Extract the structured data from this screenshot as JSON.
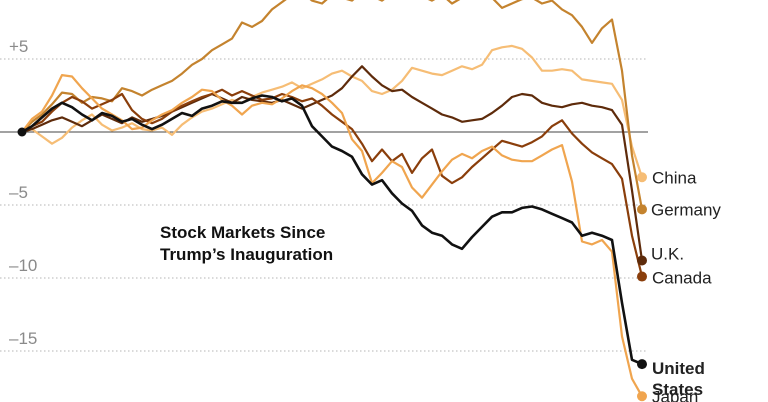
{
  "chart_data": {
    "type": "line",
    "title_lines": [
      "Stock Markets Since",
      "Trump’s Inauguration"
    ],
    "y_ticks": [
      {
        "value": 5,
        "label": "+5"
      },
      {
        "value": -5,
        "label": "–5"
      },
      {
        "value": -10,
        "label": "–10"
      },
      {
        "value": -15,
        "label": "–15"
      }
    ],
    "ylim": [
      -18.6,
      9.2
    ],
    "x_count": 63,
    "baseline": 0,
    "series": [
      {
        "name": "China",
        "color": "#f6bd75",
        "width": 2.2,
        "label_lines": [
          "China"
        ],
        "label_bold": false,
        "values": [
          0,
          0.2,
          -0.3,
          -0.8,
          -0.4,
          0.3,
          0.8,
          1.2,
          0.5,
          0.1,
          0.3,
          0.6,
          0.2,
          0.1,
          0.3,
          -0.2,
          0.5,
          1.0,
          1.4,
          1.6,
          1.9,
          2.2,
          2.0,
          2.4,
          2.7,
          2.9,
          3.1,
          3.4,
          3.0,
          3.3,
          3.6,
          4.0,
          4.2,
          3.8,
          3.5,
          2.8,
          2.6,
          2.9,
          3.5,
          4.4,
          4.2,
          4.0,
          3.9,
          4.2,
          4.5,
          4.3,
          4.6,
          5.6,
          5.8,
          5.9,
          5.7,
          5.1,
          4.2,
          4.2,
          4.3,
          4.2,
          3.6,
          3.5,
          3.4,
          3.3,
          2.2,
          -1.0,
          -3.1
        ]
      },
      {
        "name": "Germany",
        "color": "#c4832e",
        "width": 2.2,
        "label_lines": [
          "Germany"
        ],
        "label_bold": false,
        "values": [
          0,
          0.7,
          1.2,
          1.9,
          2.7,
          2.6,
          2.0,
          2.4,
          2.3,
          2.1,
          3.0,
          2.8,
          2.5,
          2.9,
          3.2,
          3.5,
          4.0,
          4.6,
          5.0,
          5.6,
          6.0,
          6.4,
          7.5,
          7.2,
          7.6,
          8.4,
          8.9,
          9.4,
          9.6,
          9.0,
          8.8,
          9.4,
          9.2,
          9.0,
          9.6,
          9.3,
          9.0,
          9.5,
          9.6,
          9.2,
          9.3,
          9.0,
          9.4,
          8.8,
          9.2,
          9.8,
          9.6,
          9.2,
          8.5,
          8.8,
          9.1,
          9.2,
          8.8,
          9.0,
          8.4,
          8.0,
          7.2,
          6.1,
          7.1,
          7.7,
          4.2,
          -1.6,
          -5.3
        ]
      },
      {
        "name": "U.K.",
        "color": "#5e2b0b",
        "width": 2.2,
        "label_lines": [
          "U.K."
        ],
        "label_bold": false,
        "values": [
          0,
          0.2,
          0.5,
          0.8,
          1.0,
          0.7,
          0.4,
          0.8,
          1.2,
          0.9,
          0.6,
          1.0,
          0.7,
          0.9,
          1.1,
          1.4,
          1.7,
          2.0,
          2.3,
          2.6,
          2.3,
          2.0,
          2.4,
          2.2,
          2.1,
          2.0,
          2.2,
          1.9,
          1.6,
          1.9,
          2.2,
          2.5,
          3.0,
          3.8,
          4.5,
          3.8,
          3.2,
          2.8,
          2.9,
          2.4,
          2.0,
          1.6,
          1.2,
          1.0,
          0.7,
          0.8,
          0.9,
          1.3,
          1.8,
          2.4,
          2.6,
          2.5,
          2.0,
          1.8,
          1.7,
          1.9,
          2.0,
          1.8,
          1.7,
          1.5,
          0.5,
          -4.0,
          -8.8
        ]
      },
      {
        "name": "Canada",
        "color": "#8a3e0b",
        "width": 2.2,
        "label_lines": [
          "Canada"
        ],
        "label_bold": false,
        "values": [
          0,
          0.4,
          0.7,
          1.4,
          2.0,
          2.4,
          2.1,
          1.6,
          1.9,
          2.2,
          2.6,
          1.5,
          0.9,
          0.6,
          0.9,
          1.4,
          1.8,
          2.1,
          2.4,
          2.6,
          2.9,
          2.5,
          2.8,
          2.5,
          2.2,
          2.3,
          2.6,
          2.4,
          2.1,
          2.3,
          1.8,
          1.2,
          0.7,
          0.2,
          -0.8,
          -2.0,
          -1.2,
          -2.0,
          -1.5,
          -2.8,
          -1.8,
          -1.2,
          -3.0,
          -3.5,
          -3.1,
          -2.4,
          -1.8,
          -1.2,
          -0.6,
          -0.8,
          -1.0,
          -0.7,
          -0.3,
          0.4,
          0.8,
          -0.1,
          -0.8,
          -1.4,
          -1.8,
          -2.2,
          -3.2,
          -7.1,
          -9.9
        ]
      },
      {
        "name": "Japan",
        "color": "#f0a54f",
        "width": 2.2,
        "label_lines": [
          "Japan"
        ],
        "label_bold": false,
        "values": [
          0,
          0.9,
          1.4,
          2.5,
          3.9,
          3.8,
          3.0,
          2.3,
          1.6,
          1.2,
          0.8,
          0.2,
          0.3,
          0.8,
          1.2,
          1.5,
          2.0,
          2.4,
          2.9,
          2.8,
          2.2,
          1.8,
          1.2,
          1.8,
          2.0,
          1.9,
          2.3,
          2.8,
          3.2,
          3.0,
          2.6,
          2.0,
          1.3,
          -0.5,
          -1.3,
          -3.5,
          -2.8,
          -2.0,
          -2.4,
          -3.8,
          -4.5,
          -3.6,
          -2.7,
          -1.9,
          -1.5,
          -1.8,
          -1.3,
          -1.0,
          -1.6,
          -1.9,
          -2.0,
          -2.0,
          -1.6,
          -1.2,
          -0.9,
          -3.4,
          -7.5,
          -7.7,
          -7.4,
          -8.2,
          -14.0,
          -16.9,
          -18.1
        ]
      },
      {
        "name": "United States",
        "color": "#111111",
        "width": 2.6,
        "label_lines": [
          "United",
          "States"
        ],
        "label_bold": true,
        "values": [
          0,
          0.4,
          1.0,
          1.6,
          2.0,
          1.7,
          1.2,
          0.8,
          1.3,
          1.1,
          0.7,
          0.9,
          0.5,
          0.2,
          0.5,
          0.9,
          1.3,
          1.1,
          1.6,
          1.8,
          2.1,
          2.0,
          2.0,
          2.3,
          2.5,
          2.4,
          2.1,
          2.3,
          1.8,
          0.4,
          -0.3,
          -1.0,
          -1.3,
          -1.7,
          -2.9,
          -3.6,
          -3.3,
          -4.2,
          -4.9,
          -5.4,
          -6.4,
          -6.9,
          -7.1,
          -7.7,
          -8.0,
          -7.2,
          -6.5,
          -5.8,
          -5.5,
          -5.5,
          -5.2,
          -5.1,
          -5.3,
          -5.6,
          -5.9,
          -6.2,
          -7.1,
          -6.9,
          -7.1,
          -7.4,
          -11.7,
          -15.6,
          -15.9
        ]
      }
    ]
  }
}
